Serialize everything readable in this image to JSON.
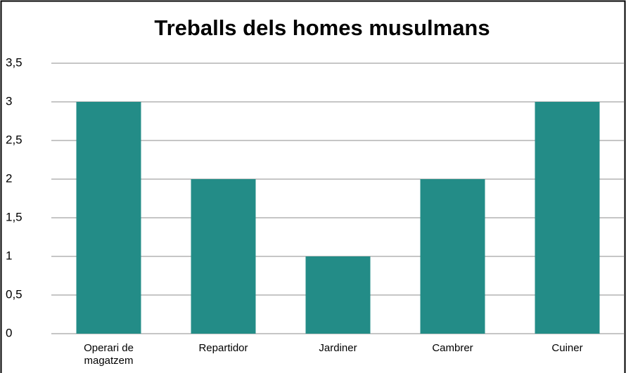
{
  "chart_data": {
    "type": "bar",
    "title": "Treballs dels homes musulmans",
    "categories": [
      "Operari de magatzem",
      "Repartidor",
      "Jardiner",
      "Cambrer",
      "Cuiner"
    ],
    "values": [
      3,
      2,
      1,
      2,
      3
    ],
    "color": "#238c87",
    "ylim": [
      0,
      3.5
    ],
    "yticks": [
      0,
      {
        "value": 0.5,
        "label": "0,5"
      },
      1,
      {
        "value": 1.5,
        "label": "1,5"
      },
      2,
      {
        "value": 2.5,
        "label": "2,5"
      },
      3,
      {
        "value": 3.5,
        "label": "3,5"
      }
    ],
    "grid": true
  }
}
